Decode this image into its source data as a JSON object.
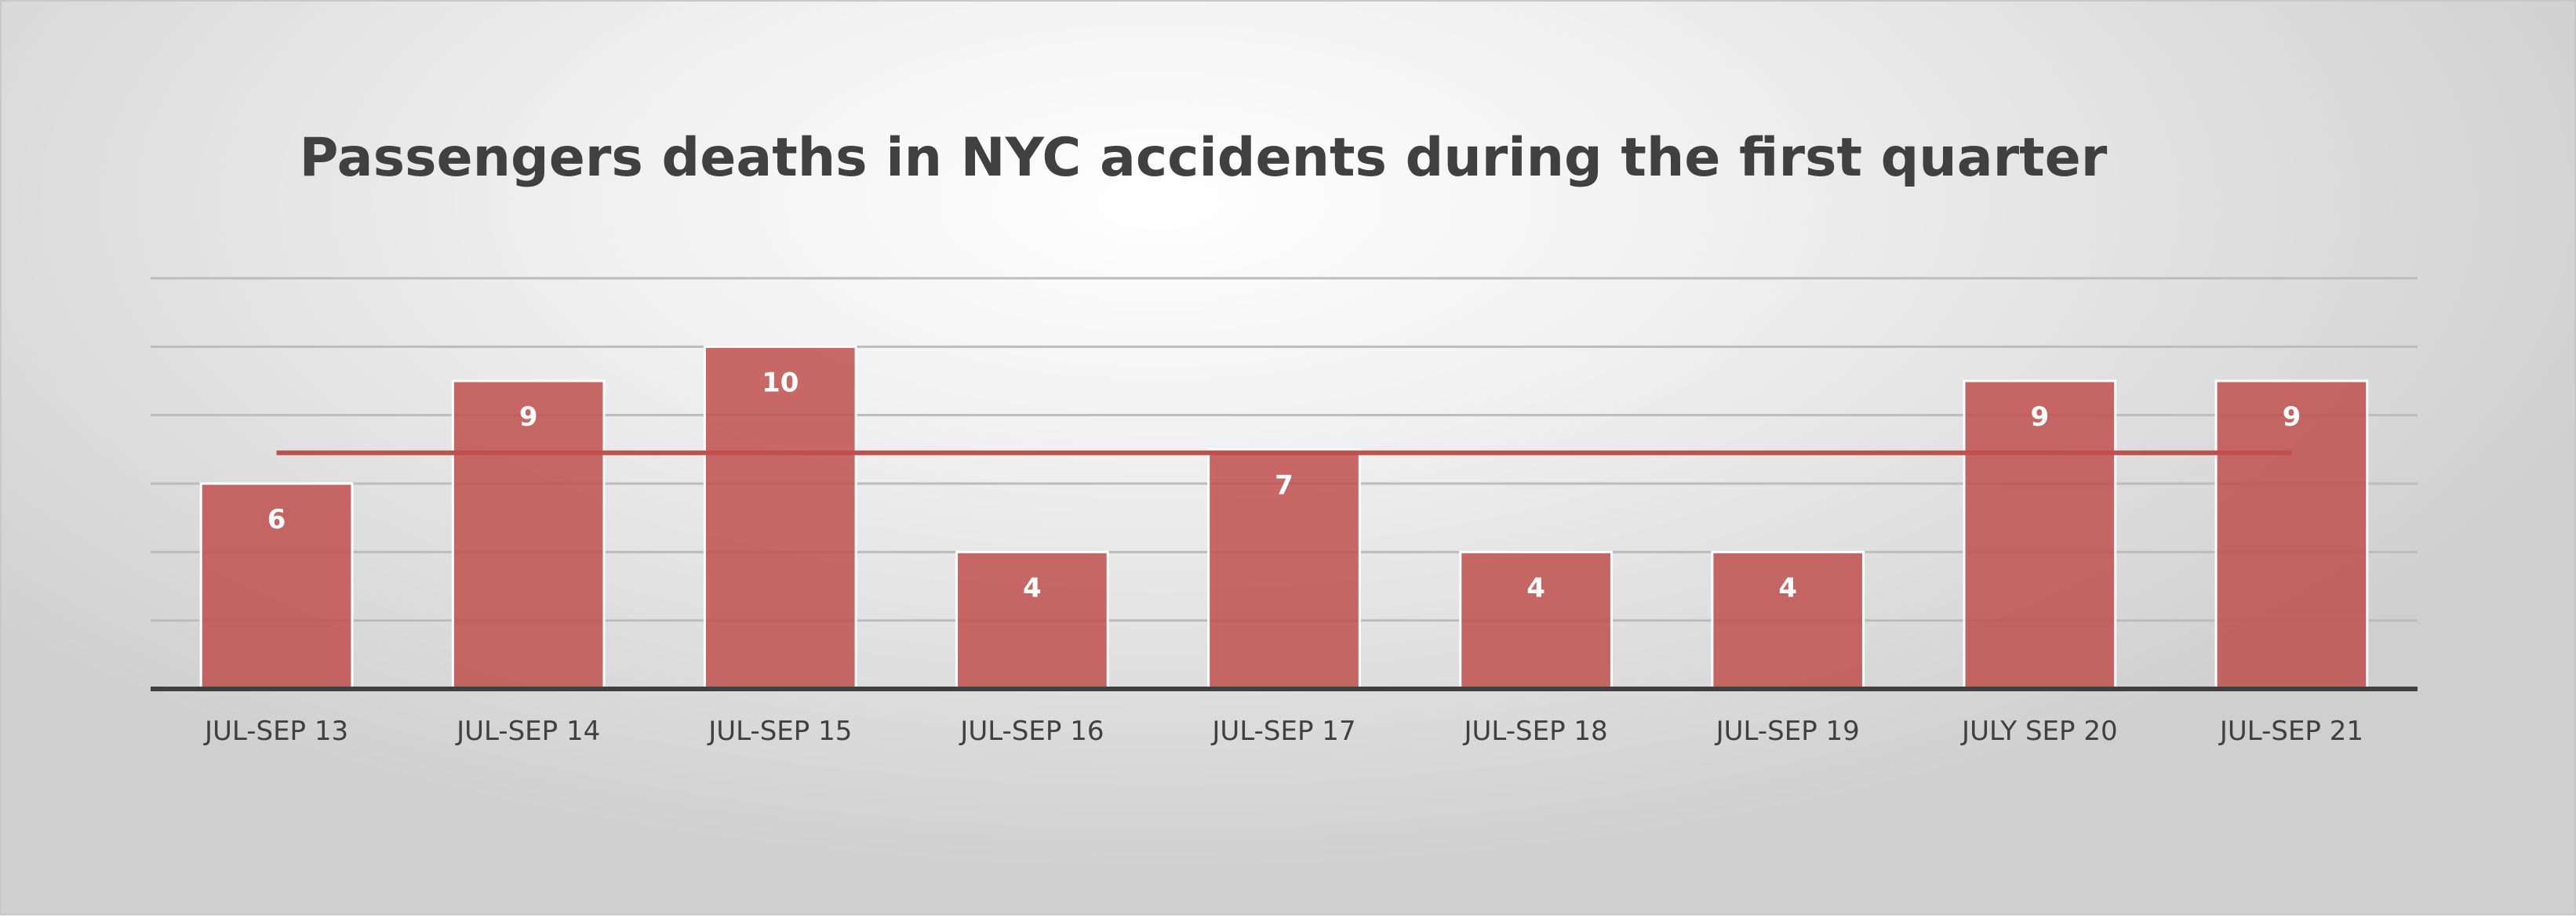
{
  "chart_data": {
    "type": "bar",
    "title": "Passengers deaths in NYC accidents during the first quarter",
    "categories": [
      "JUL-SEP 13",
      "JUL-SEP 14",
      "JUL-SEP 15",
      "JUL-SEP 16",
      "JUL-SEP 17",
      "JUL-SEP 18",
      "JUL-SEP 19",
      "JULY SEP 20",
      "JUL-SEP 21"
    ],
    "values": [
      6,
      9,
      10,
      4,
      7,
      4,
      4,
      9,
      9
    ],
    "average_line": 6.9,
    "ylim": [
      0,
      12
    ],
    "grid": true,
    "legend": "none",
    "xlabel": "",
    "ylabel": "",
    "colors": {
      "bar": "#c0504d",
      "average_line": "#c0504d"
    }
  }
}
